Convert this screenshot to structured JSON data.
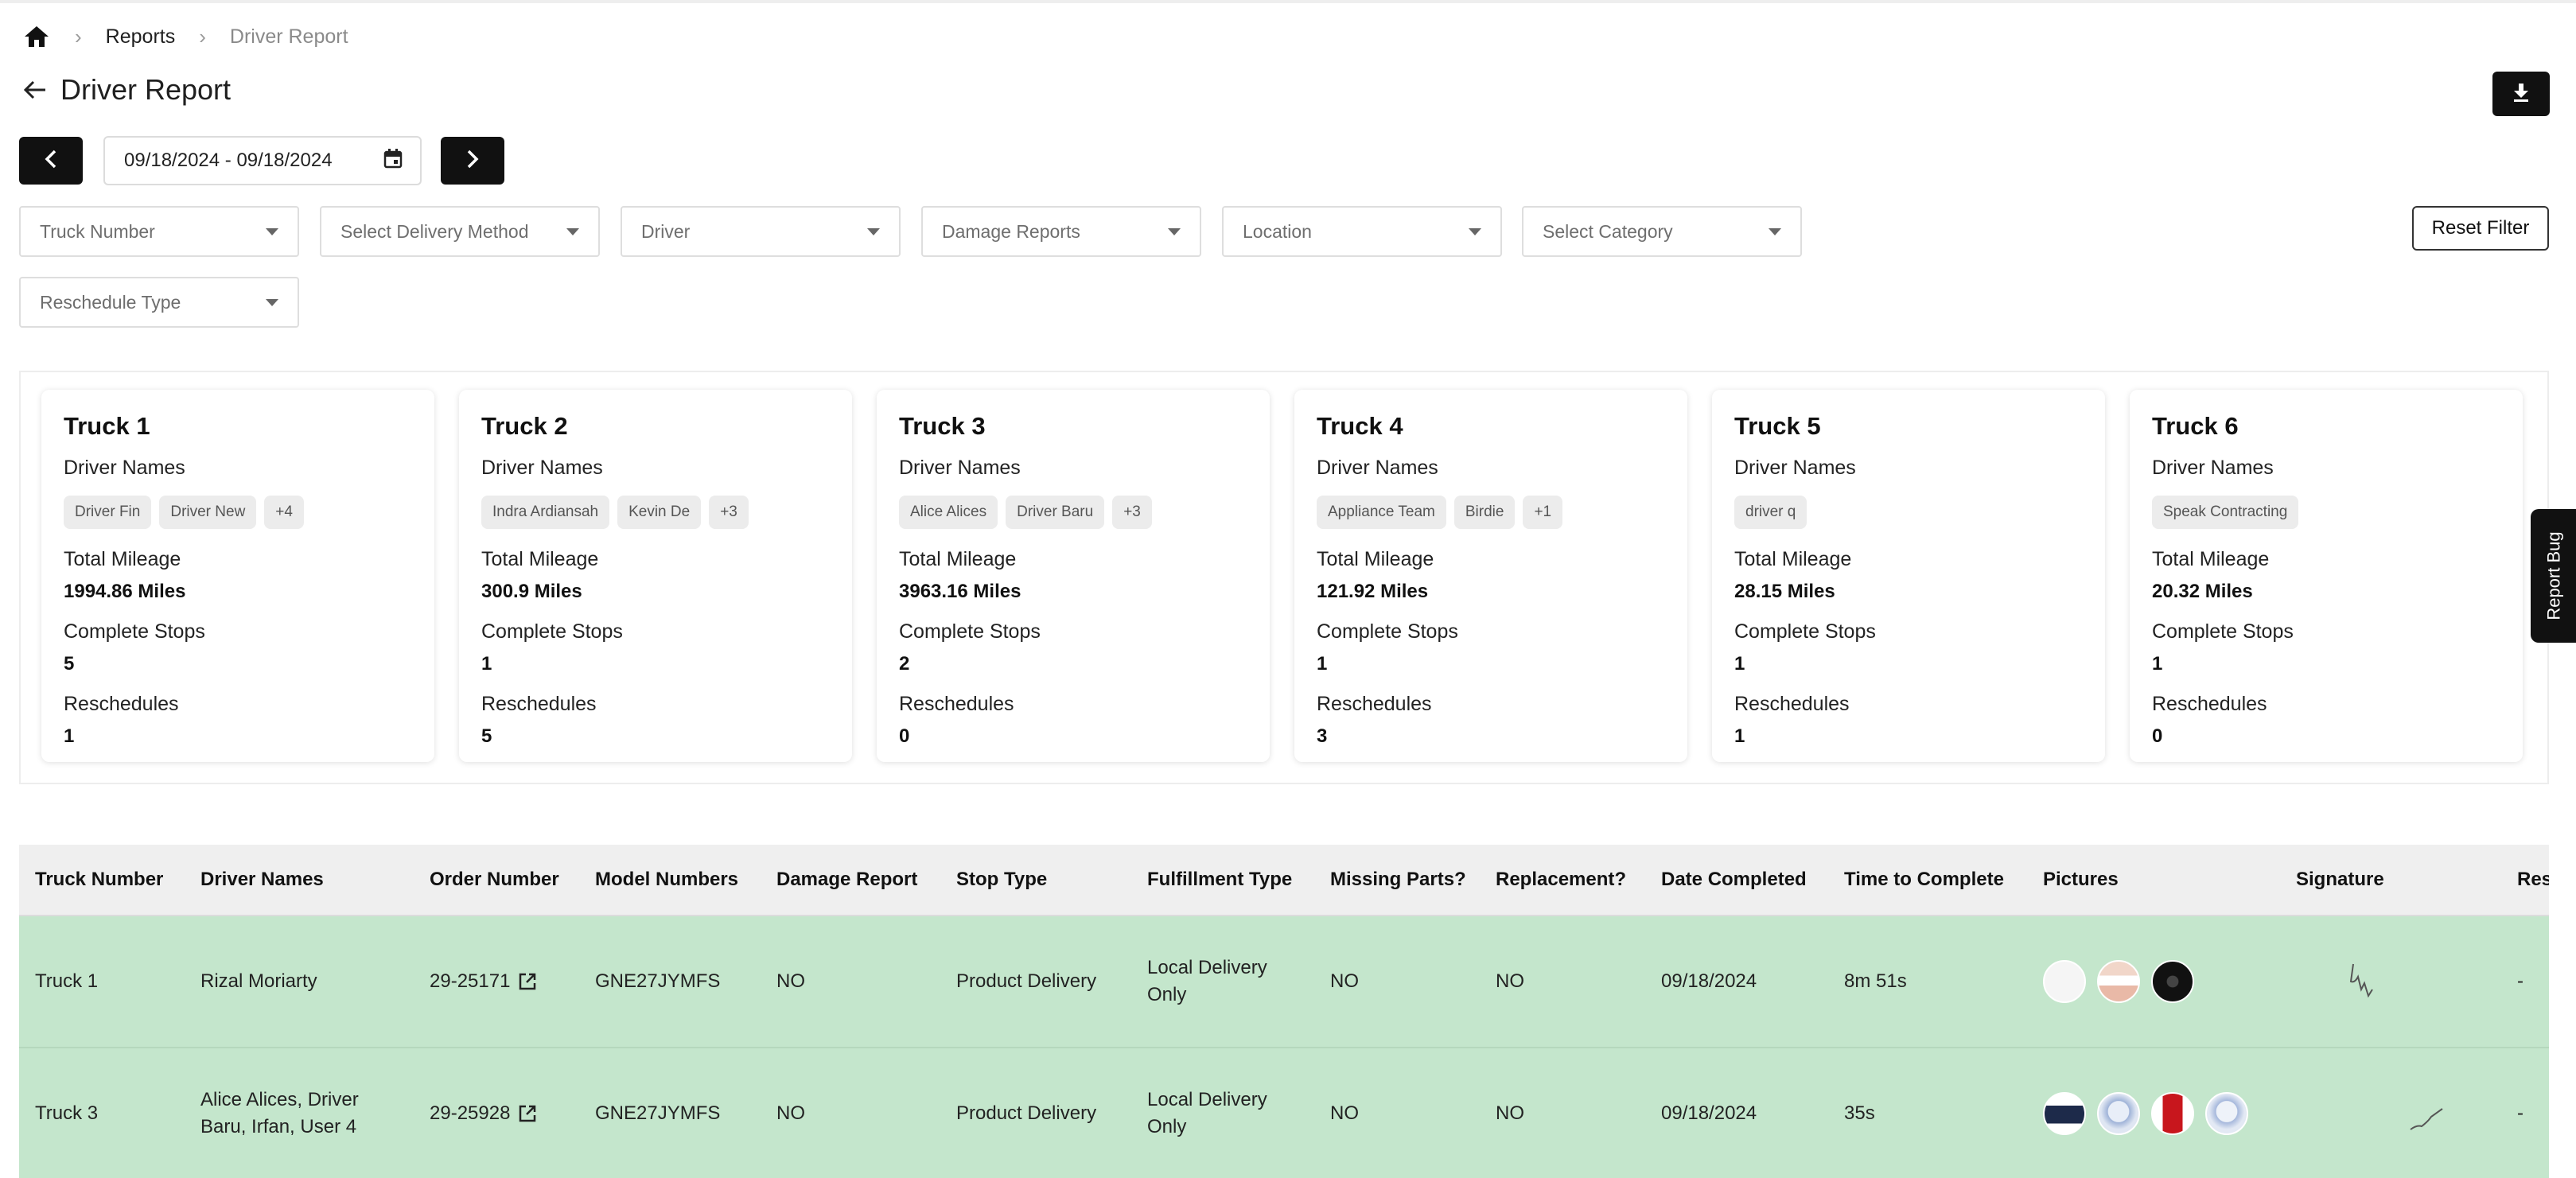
{
  "breadcrumb": {
    "reports": "Reports",
    "current": "Driver Report"
  },
  "page_title": "Driver Report",
  "date_range": {
    "value": "09/18/2024 - 09/18/2024"
  },
  "filters": {
    "truck_number": "Truck Number",
    "delivery_method": "Select Delivery Method",
    "driver": "Driver",
    "damage_reports": "Damage Reports",
    "location": "Location",
    "category": "Select Category",
    "reschedule_type": "Reschedule Type",
    "reset": "Reset Filter"
  },
  "card_labels": {
    "driver_names": "Driver Names",
    "total_mileage": "Total Mileage",
    "complete_stops": "Complete Stops",
    "reschedules": "Reschedules"
  },
  "trucks": [
    {
      "name": "Truck 1",
      "chips": [
        "Driver Fin",
        "Driver New",
        "+4"
      ],
      "mileage": "1994.86 Miles",
      "stops": "5",
      "reschedules": "1"
    },
    {
      "name": "Truck 2",
      "chips": [
        "Indra Ardiansah",
        "Kevin De",
        "+3"
      ],
      "mileage": "300.9 Miles",
      "stops": "1",
      "reschedules": "5"
    },
    {
      "name": "Truck 3",
      "chips": [
        "Alice Alices",
        "Driver Baru",
        "+3"
      ],
      "mileage": "3963.16 Miles",
      "stops": "2",
      "reschedules": "0"
    },
    {
      "name": "Truck 4",
      "chips": [
        "Appliance Team",
        "Birdie",
        "+1"
      ],
      "mileage": "121.92 Miles",
      "stops": "1",
      "reschedules": "3"
    },
    {
      "name": "Truck 5",
      "chips": [
        "driver q"
      ],
      "mileage": "28.15 Miles",
      "stops": "1",
      "reschedules": "1"
    },
    {
      "name": "Truck 6",
      "chips": [
        "Speak Contracting"
      ],
      "mileage": "20.32 Miles",
      "stops": "1",
      "reschedules": "0"
    }
  ],
  "report_bug": "Report Bug",
  "table": {
    "headers": [
      "Truck Number",
      "Driver Names",
      "Order Number",
      "Model Numbers",
      "Damage Report",
      "Stop Type",
      "Fulfillment Type",
      "Missing Parts?",
      "Replacement?",
      "Date Completed",
      "Time to Complete",
      "Pictures",
      "Signature",
      "Res"
    ],
    "rows": [
      {
        "truck": "Truck 1",
        "drivers": "Rizal Moriarty",
        "order": "29-25171",
        "model": "GNE27JYMFS",
        "damage": "NO",
        "stop_type": "Product Delivery",
        "fulfillment": "Local Delivery Only",
        "missing": "NO",
        "replacement": "NO",
        "date": "09/18/2024",
        "time": "8m 51s",
        "res": "-"
      },
      {
        "truck": "Truck 3",
        "drivers": "Alice Alices, Driver Baru, Irfan, User 4",
        "order": "29-25928",
        "model": "GNE27JYMFS",
        "damage": "NO",
        "stop_type": "Product Delivery",
        "fulfillment": "Local Delivery Only",
        "missing": "NO",
        "replacement": "NO",
        "date": "09/18/2024",
        "time": "35s",
        "res": "-"
      }
    ]
  },
  "colors": {
    "row_bg": "#c4e6cc",
    "button_dark": "#111111",
    "header_bg": "#efefef"
  },
  "icons": [
    "home-icon",
    "chevron-right-icon",
    "arrow-left-icon",
    "download-icon",
    "calendar-icon",
    "caret-down-icon",
    "external-link-icon"
  ]
}
